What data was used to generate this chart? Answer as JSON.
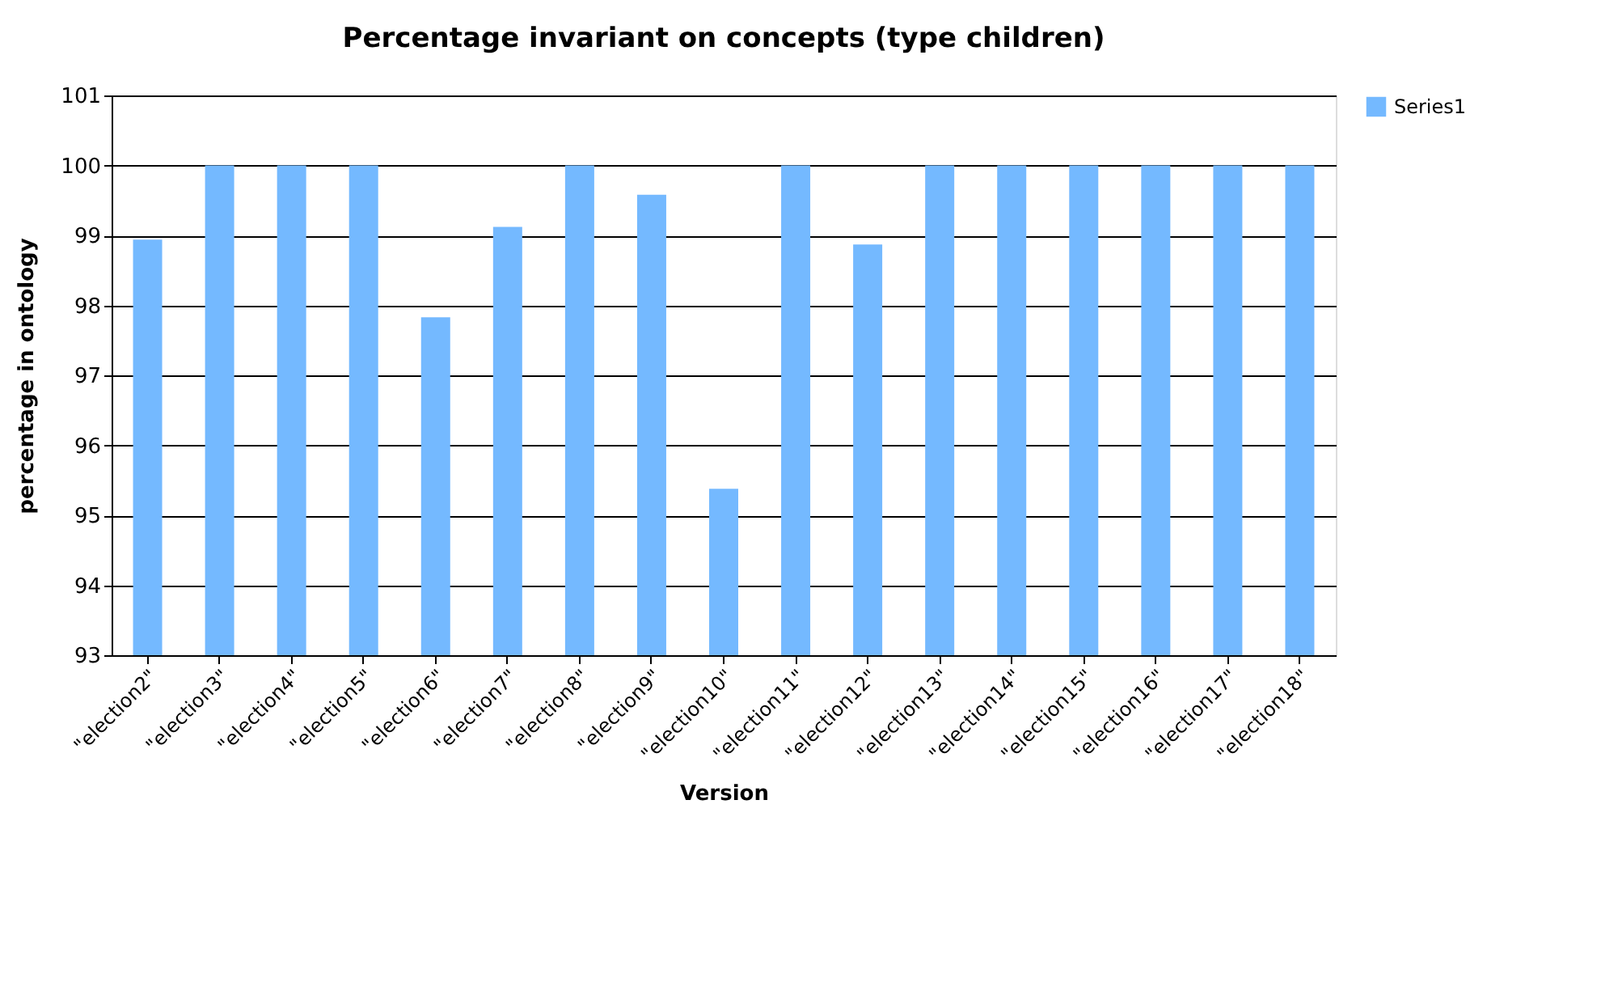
{
  "chart_data": {
    "type": "bar",
    "title": "Percentage invariant on concepts (type children)",
    "xlabel": "Version",
    "ylabel": "percentage in ontology",
    "categories": [
      "\"election2\"",
      "\"election3\"",
      "\"election4\"",
      "\"election5\"",
      "\"election6\"",
      "\"election7\"",
      "\"election8\"",
      "\"election9\"",
      "\"election10\"",
      "\"election11\"",
      "\"election12\"",
      "\"election13\"",
      "\"election14\"",
      "\"election15\"",
      "\"election16\"",
      "\"election17\"",
      "\"election18\""
    ],
    "series": [
      {
        "name": "Series1",
        "color": "#74b9ff",
        "values": [
          98.94,
          100,
          100,
          100,
          97.83,
          99.12,
          100,
          99.58,
          95.38,
          100,
          98.87,
          100,
          100,
          100,
          100,
          100,
          100
        ]
      }
    ],
    "ylim": [
      93,
      101
    ],
    "yticks": [
      93,
      94,
      95,
      96,
      97,
      98,
      99,
      100,
      101
    ],
    "grid": "y",
    "legend": "right"
  }
}
